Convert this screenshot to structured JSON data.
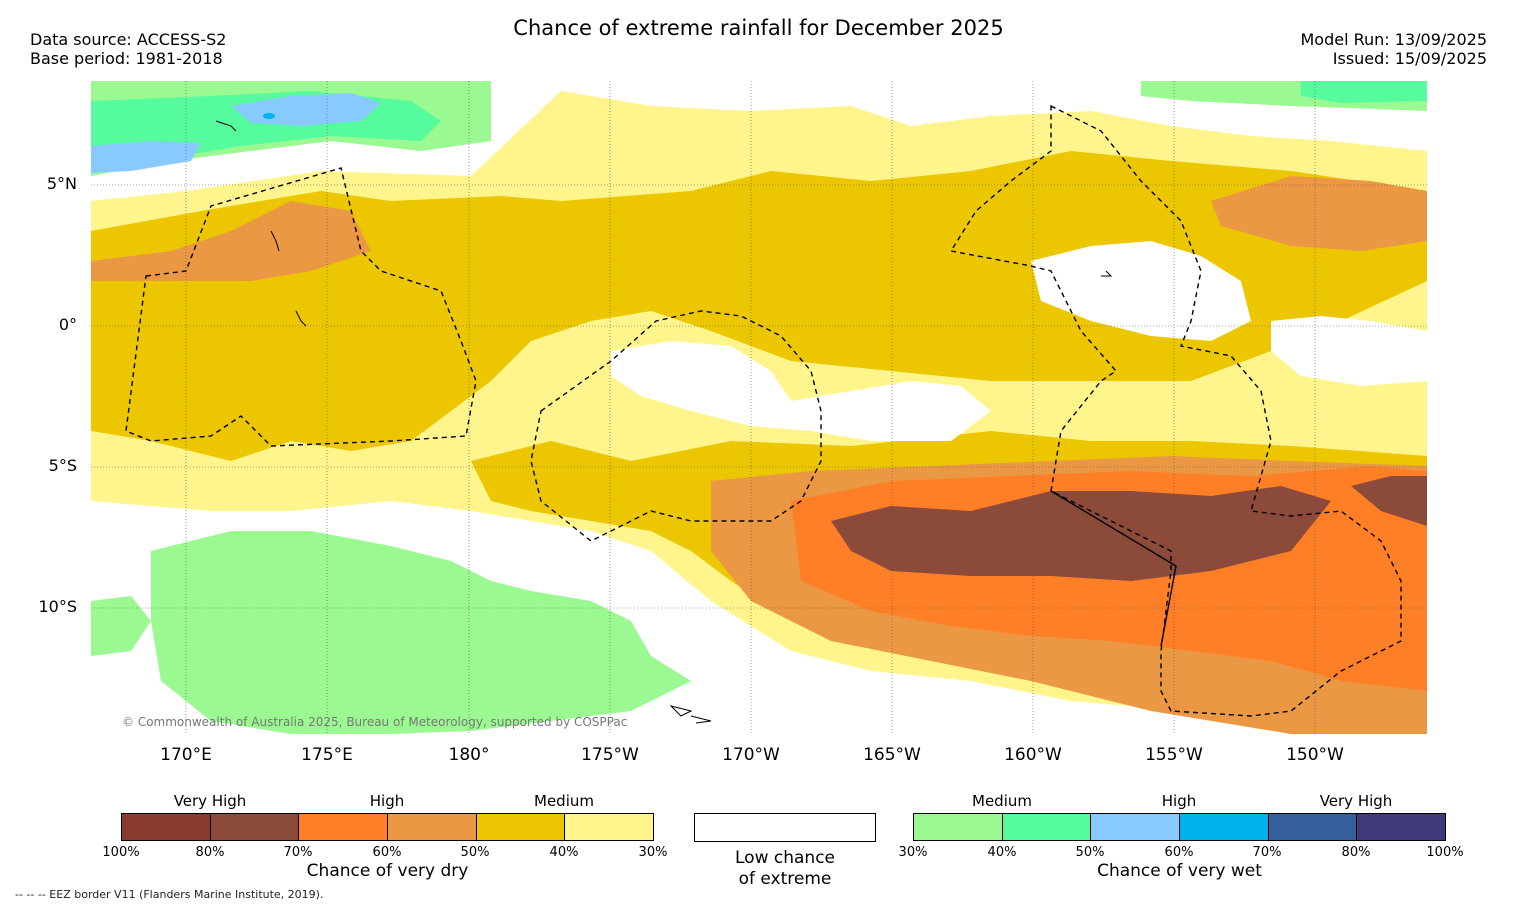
{
  "header": {
    "title": "Chance of extreme rainfall for December 2025",
    "data_source": "Data source: ACCESS-S2",
    "base_period": "Base period: 1981-2018",
    "model_run": "Model Run: 13/09/2025",
    "issued": "Issued: 15/09/2025"
  },
  "map": {
    "lat_labels": [
      "5°N",
      "0°",
      "5°S",
      "10°S"
    ],
    "lon_labels": [
      "170°E",
      "175°E",
      "180°",
      "175°W",
      "170°W",
      "165°W",
      "160°W",
      "155°W",
      "150°W"
    ],
    "copyright": "© Commonwealth of Australia 2025, Bureau of Meteorology, supported by COSPPac",
    "layers": [
      "very-dry-80-100",
      "very-dry-70-80",
      "very-dry-60-70",
      "very-dry-50-60",
      "very-dry-40-50",
      "very-dry-30-40",
      "low-chance",
      "very-wet-30-40",
      "very-wet-40-50",
      "very-wet-50-60",
      "very-wet-60-70",
      "eez-border"
    ]
  },
  "legend": {
    "dry": {
      "group_labels": [
        "Very High",
        "High",
        "Medium"
      ],
      "colors": [
        "#8b3a2e",
        "#8b4a3a",
        "#ff7f27",
        "#eb9845",
        "#ecc700",
        "#fff58c"
      ],
      "ticks": [
        "100%",
        "80%",
        "70%",
        "60%",
        "50%",
        "40%",
        "30%"
      ],
      "caption": "Chance of very dry"
    },
    "low": {
      "line1": "Low chance",
      "line2": "of extreme"
    },
    "wet": {
      "group_labels": [
        "Medium",
        "High",
        "Very High"
      ],
      "colors": [
        "#9bf991",
        "#56fb9e",
        "#88caff",
        "#00b2ec",
        "#365e9c",
        "#3f3b78"
      ],
      "ticks": [
        "30%",
        "40%",
        "50%",
        "60%",
        "70%",
        "80%",
        "100%"
      ],
      "caption": "Chance of very wet"
    }
  },
  "footnote": "-- -- -- EEZ border V11 (Flanders Marine Institute, 2019)."
}
